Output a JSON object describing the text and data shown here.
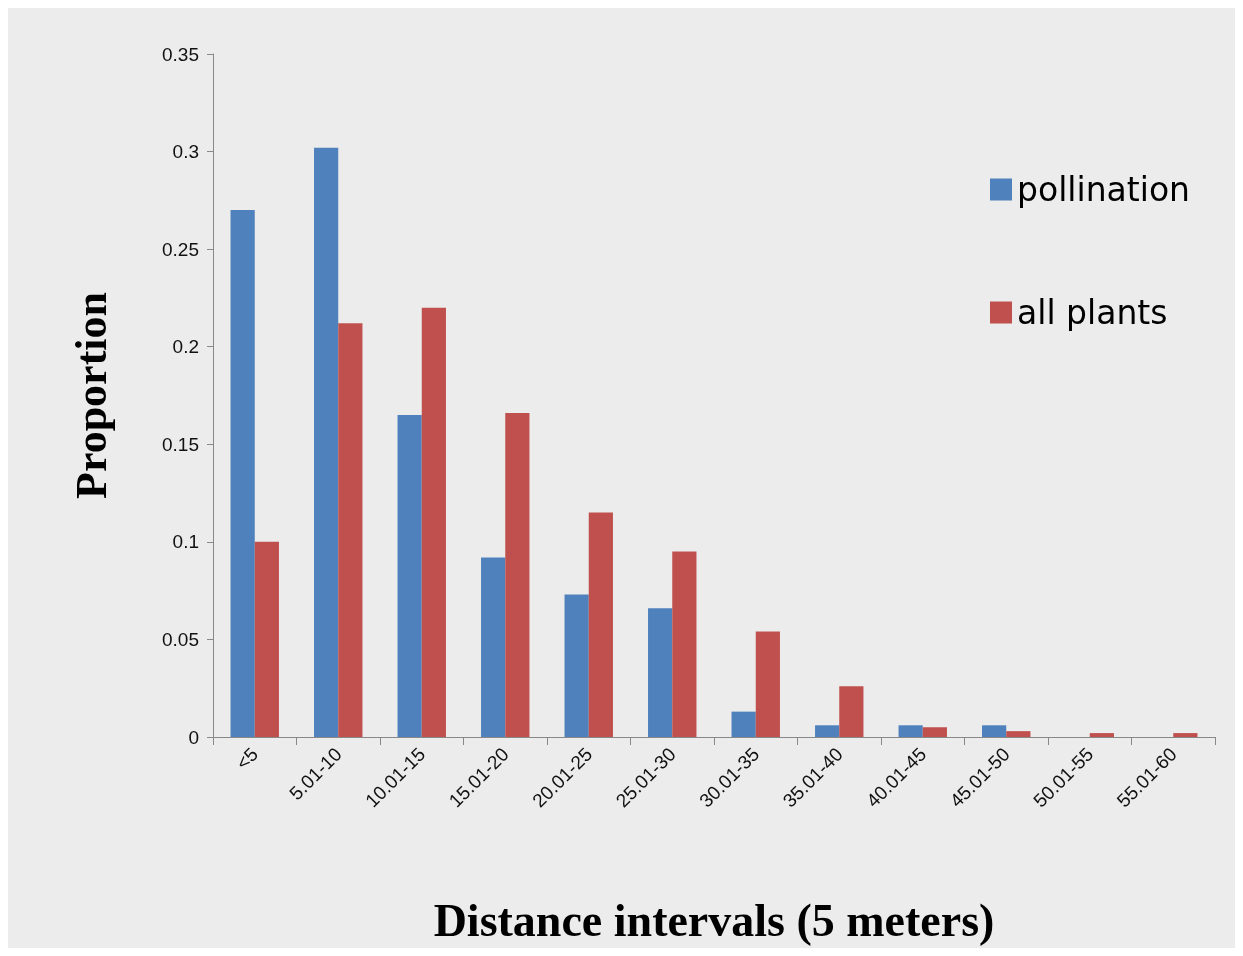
{
  "chart_data": {
    "type": "bar",
    "xlabel": "Distance intervals (5 meters)",
    "ylabel": "Proportion",
    "categories": [
      "<5",
      "5.01-10",
      "10.01-15",
      "15.01-20",
      "20.01-25",
      "25.01-30",
      "30.01-35",
      "35.01-40",
      "40.01-45",
      "45.01-50",
      "50.01-55",
      "55.01-60"
    ],
    "series": [
      {
        "name": "pollination",
        "color": "#4f81bd",
        "values": [
          0.27,
          0.302,
          0.165,
          0.092,
          0.073,
          0.066,
          0.013,
          0.006,
          0.006,
          0.006,
          0,
          0
        ]
      },
      {
        "name": "all plants",
        "color": "#c0504d",
        "values": [
          0.1,
          0.212,
          0.22,
          0.166,
          0.115,
          0.095,
          0.054,
          0.026,
          0.005,
          0.003,
          0.002,
          0.002
        ]
      }
    ],
    "ylim": [
      0,
      0.35
    ],
    "yticks": [
      0,
      0.05,
      0.1,
      0.15,
      0.2,
      0.25,
      0.3,
      0.35
    ],
    "grid": false,
    "legend": "top right"
  }
}
